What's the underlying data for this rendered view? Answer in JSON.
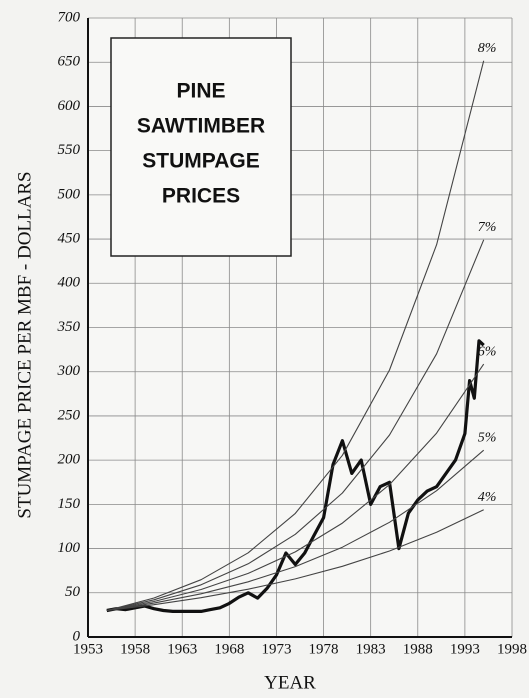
{
  "chart_data": {
    "type": "line",
    "title": [
      "PINE",
      "SAWTIMBER",
      "STUMPAGE",
      "PRICES"
    ],
    "x_label": "YEAR",
    "y_label": "STUMPAGE PRICE PER MBF - DOLLARS",
    "xlim": [
      1953,
      1998
    ],
    "xticks": [
      1953,
      1958,
      1963,
      1968,
      1973,
      1978,
      1983,
      1988,
      1993,
      1998
    ],
    "ylim": [
      0,
      700
    ],
    "yticks": [
      0,
      50,
      100,
      150,
      200,
      250,
      300,
      350,
      400,
      450,
      500,
      550,
      600,
      650,
      700
    ],
    "grid": true,
    "series": [
      {
        "color": "#111111",
        "x": [
          1955,
          1956,
          1957,
          1958,
          1959,
          1960,
          1961,
          1962,
          1963,
          1964,
          1965,
          1966,
          1967,
          1968,
          1969,
          1970,
          1971,
          1972,
          1973,
          1974,
          1975,
          1976,
          1977,
          1978,
          1979,
          1980,
          1981,
          1982,
          1983,
          1984,
          1985,
          1986,
          1987,
          1988,
          1989,
          1990,
          1991,
          1992,
          1993,
          1993.5,
          1994,
          1994.5,
          1995
        ],
        "values": [
          30,
          32,
          31,
          33,
          35,
          32,
          30,
          29,
          29,
          29,
          29,
          31,
          33,
          38,
          45,
          50,
          44,
          55,
          70,
          95,
          82,
          95,
          115,
          135,
          195,
          222,
          185,
          200,
          150,
          170,
          175,
          100,
          140,
          155,
          165,
          170,
          185,
          200,
          230,
          290,
          270,
          335,
          330
        ]
      },
      {
        "name": "8%",
        "color": "#444444",
        "x": [
          1955,
          1960,
          1965,
          1970,
          1975,
          1980,
          1985,
          1990,
          1995
        ],
        "values": [
          30,
          44.1,
          64.8,
          95.2,
          139.8,
          205.5,
          301.9,
          443.6,
          651.7
        ]
      },
      {
        "name": "7%",
        "color": "#444444",
        "x": [
          1955,
          1960,
          1965,
          1970,
          1975,
          1980,
          1985,
          1990,
          1995
        ],
        "values": [
          30,
          42.1,
          59.0,
          82.8,
          116.1,
          162.8,
          228.4,
          320.3,
          449.2
        ]
      },
      {
        "name": "6%",
        "color": "#444444",
        "x": [
          1955,
          1960,
          1965,
          1970,
          1975,
          1980,
          1985,
          1990,
          1995
        ],
        "values": [
          30,
          40.1,
          53.7,
          71.9,
          96.2,
          128.8,
          172.3,
          230.6,
          308.6
        ]
      },
      {
        "name": "5%",
        "color": "#444444",
        "x": [
          1955,
          1960,
          1965,
          1970,
          1975,
          1980,
          1985,
          1990,
          1995
        ],
        "values": [
          30,
          38.3,
          48.9,
          62.4,
          79.6,
          101.6,
          129.7,
          165.5,
          211.2
        ]
      },
      {
        "name": "4%",
        "color": "#444444",
        "x": [
          1955,
          1960,
          1965,
          1970,
          1975,
          1980,
          1985,
          1990,
          1995
        ],
        "values": [
          30,
          36.5,
          44.4,
          54.0,
          65.7,
          80.0,
          97.3,
          118.4,
          144.0
        ]
      }
    ]
  }
}
